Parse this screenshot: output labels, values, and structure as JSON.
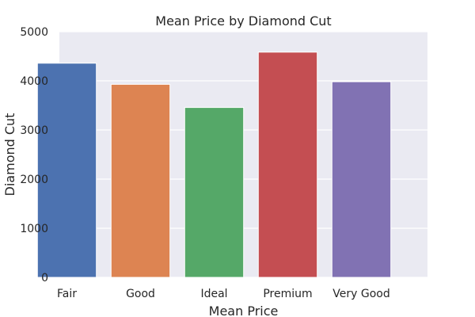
{
  "chart_data": {
    "type": "bar",
    "title": "Mean Price by Diamond Cut",
    "xlabel": "Mean Price",
    "ylabel": "Diamond Cut",
    "categories": [
      "Fair",
      "Good",
      "Ideal",
      "Premium",
      "Very Good"
    ],
    "values": [
      4359,
      3929,
      3458,
      4584,
      3982
    ],
    "colors": [
      "#4c72b0",
      "#dd8452",
      "#55a868",
      "#c44e52",
      "#8172b3"
    ],
    "ylim": [
      0,
      5000
    ],
    "yticks": [
      "0",
      "1000",
      "2000",
      "3000",
      "4000",
      "5000"
    ],
    "grid": true,
    "background": "#eaeaf2",
    "legend": "none"
  }
}
